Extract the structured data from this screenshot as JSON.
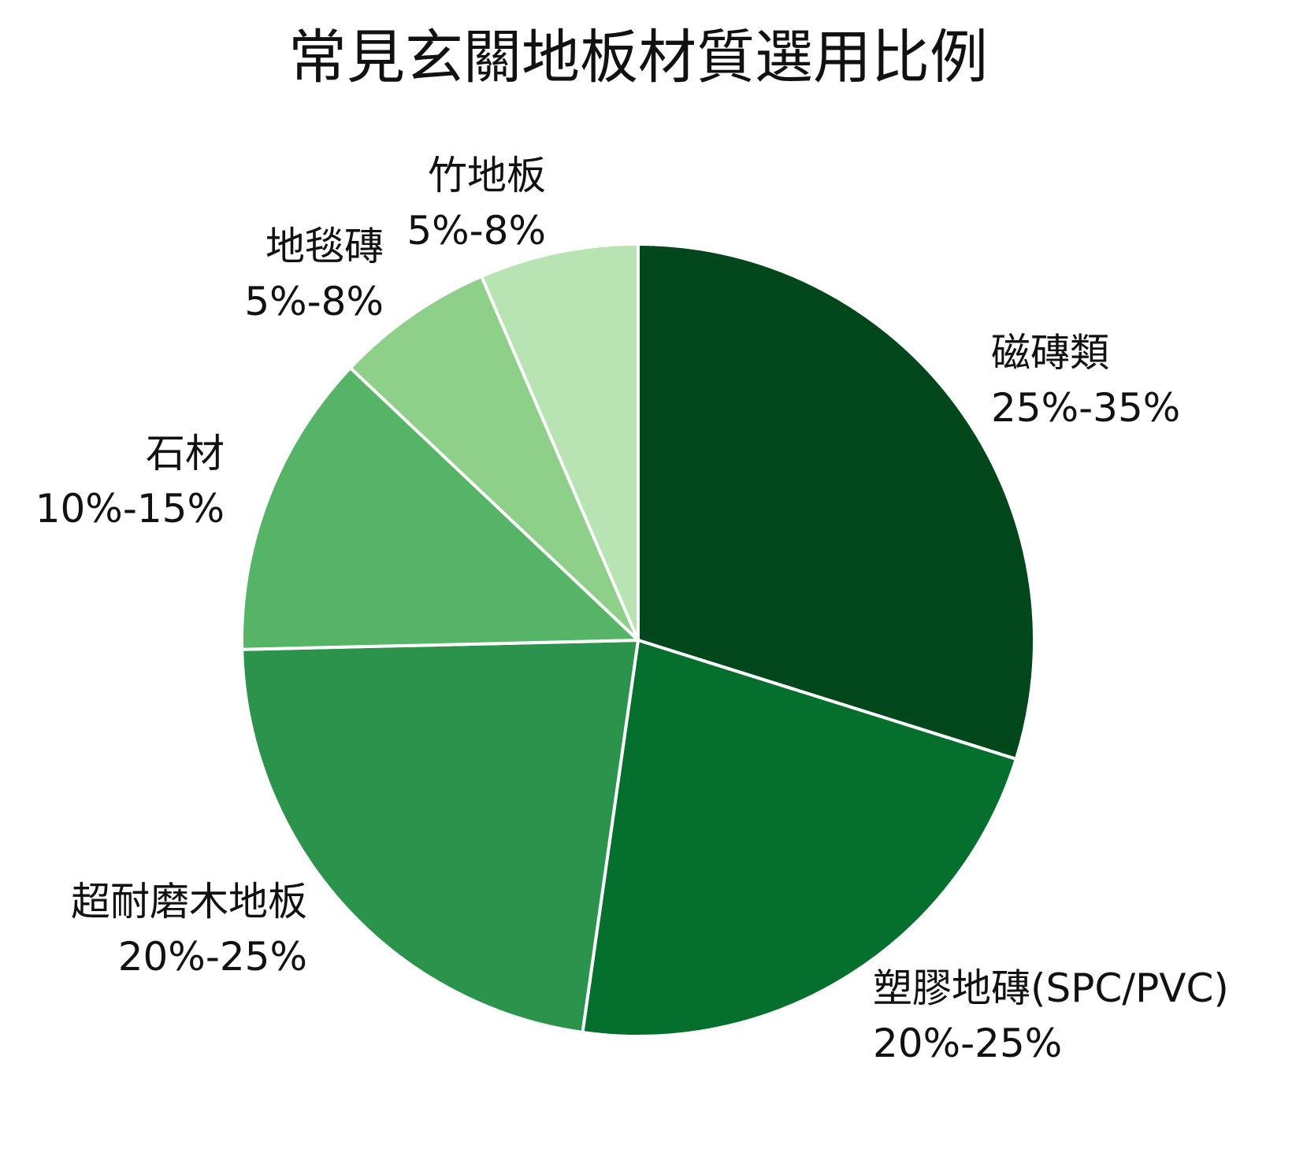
{
  "chart_data": {
    "type": "pie",
    "title": "常見玄關地板材質選用比例",
    "slices": [
      {
        "name": "磁磚類",
        "range_label": "25%-35%",
        "value": 30,
        "color": "#00471b"
      },
      {
        "name": "塑膠地磚(SPC/PVC)",
        "range_label": "20%-25%",
        "value": 22.5,
        "color": "#056f2e"
      },
      {
        "name": "超耐磨木地板",
        "range_label": "20%-25%",
        "value": 22.5,
        "color": "#2c934d"
      },
      {
        "name": "石材",
        "range_label": "10%-15%",
        "value": 12.5,
        "color": "#56b467"
      },
      {
        "name": "地毯磚",
        "range_label": "5%-8%",
        "value": 6.5,
        "color": "#8ecf89"
      },
      {
        "name": "竹地板",
        "range_label": "5%-8%",
        "value": 6.5,
        "color": "#b8e3b2"
      }
    ],
    "start_angle": "12 o'clock",
    "direction": "clockwise",
    "legend": "none"
  }
}
